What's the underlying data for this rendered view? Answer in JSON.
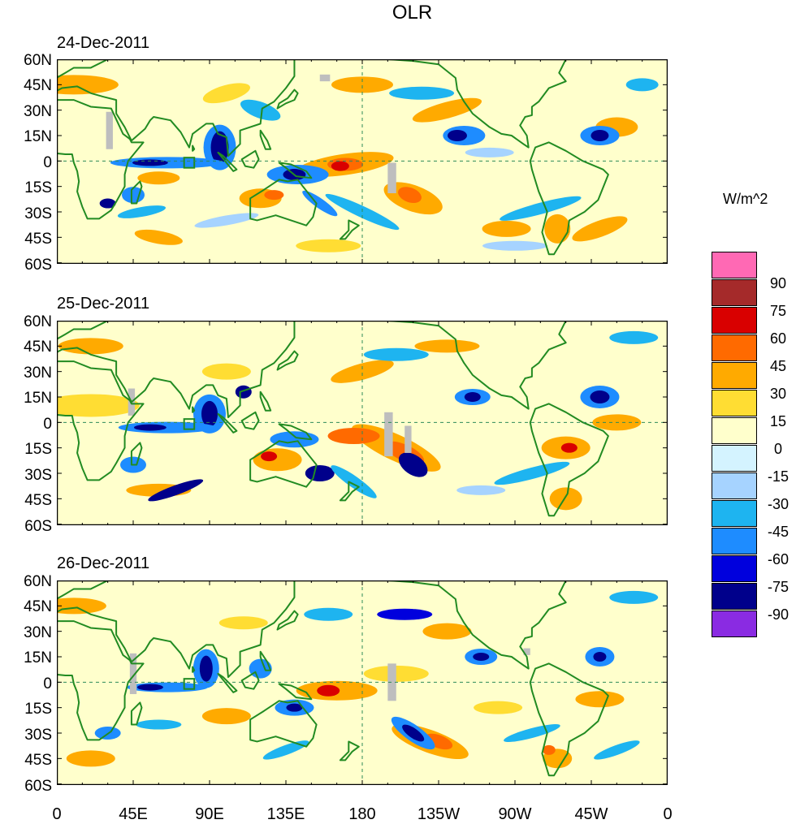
{
  "title": "OLR",
  "units": "W/m^2",
  "panels": [
    {
      "date": "24-Dec-2011"
    },
    {
      "date": "25-Dec-2011"
    },
    {
      "date": "26-Dec-2011"
    }
  ],
  "lat_labels": [
    "60N",
    "45N",
    "30N",
    "15N",
    "0",
    "15S",
    "30S",
    "45S",
    "60S"
  ],
  "lon_labels": [
    "0",
    "45E",
    "90E",
    "135E",
    "180",
    "135W",
    "90W",
    "45W",
    "0"
  ],
  "legend": {
    "labels": [
      "90",
      "75",
      "60",
      "45",
      "30",
      "15",
      "0",
      "-15",
      "-30",
      "-45",
      "-60",
      "-75",
      "-90"
    ],
    "colors": [
      "#ff69b4",
      "#a52a2a",
      "#d90000",
      "#ff6a00",
      "#ffaa00",
      "#ffdd33",
      "#ffffcc",
      "#d4f3ff",
      "#a6d3ff",
      "#1eb4f0",
      "#1e8cff",
      "#0000dd",
      "#00008b",
      "#8a2be2"
    ]
  },
  "colors": {
    "coast": "#228b22",
    "missing": "#bebebe"
  }
}
